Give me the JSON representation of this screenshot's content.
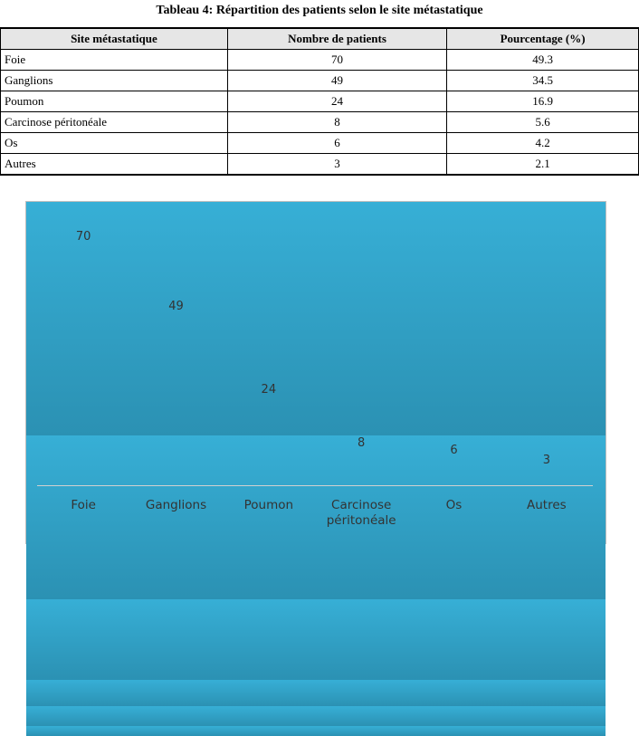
{
  "title": "Tableau 4: Répartition des patients selon le site métastatique",
  "table": {
    "header": [
      "Site métastatique",
      "Nombre de patients",
      "Pourcentage (%)"
    ],
    "rows": [
      [
        "Foie",
        "70",
        "49.3"
      ],
      [
        "Ganglions",
        "49",
        "34.5"
      ],
      [
        "Poumon",
        "24",
        "16.9"
      ],
      [
        "Carcinose péritonéale",
        "8",
        "5.6"
      ],
      [
        "Os",
        "6",
        "4.2"
      ],
      [
        "Autres",
        "3",
        "2.1"
      ]
    ]
  },
  "chart_data": {
    "type": "bar",
    "categories": [
      "Foie",
      "Ganglions",
      "Poumon",
      "Carcinose péritonéale",
      "Os",
      "Autres"
    ],
    "values": [
      70,
      49,
      24,
      8,
      6,
      3
    ],
    "color": "#37afd6"
  }
}
